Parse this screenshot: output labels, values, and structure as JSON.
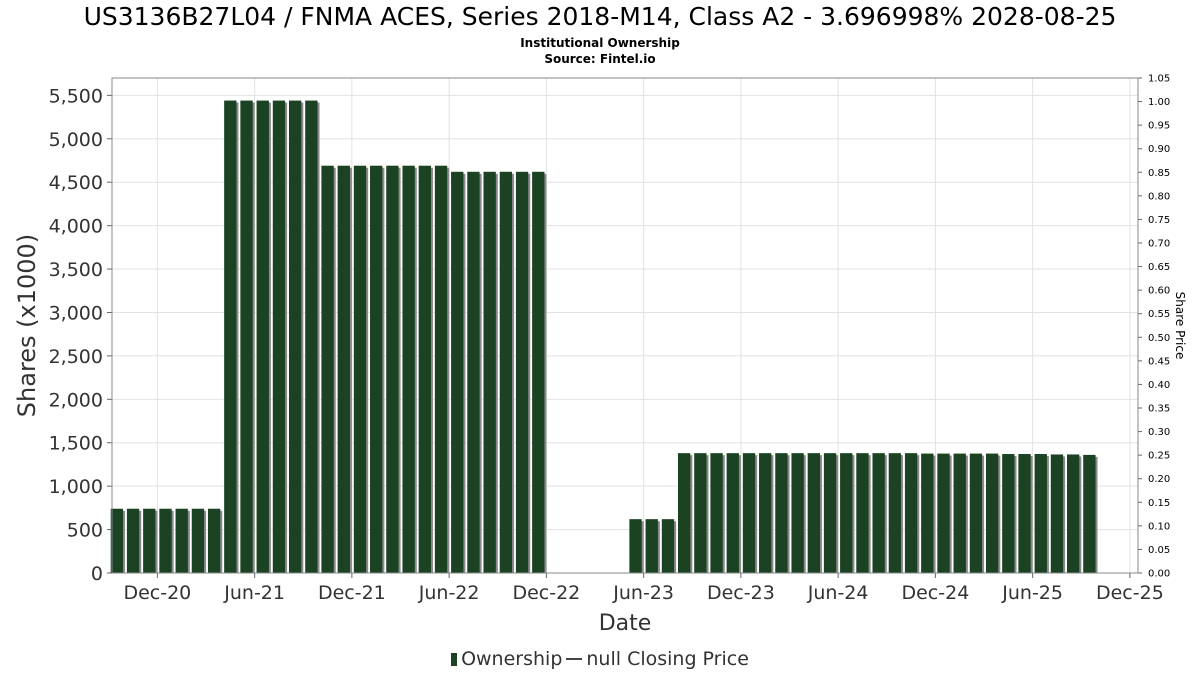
{
  "title": "US3136B27L04 / FNMA ACES, Series 2018-M14, Class A2 - 3.696998% 2028-08-25",
  "subtitle": "Institutional Ownership",
  "source": "Source: Fintel.io",
  "legend": {
    "ownership": "Ownership",
    "closing_price": "null Closing Price"
  },
  "colors": {
    "bar": "#1a4223",
    "bar_shadow": "#8a8a8a",
    "grid": "#e2e2e2"
  },
  "chart_data": {
    "type": "bar",
    "xlabel": "Date",
    "ylabel": "Shares (x1000)",
    "y2label": "Share Price",
    "ylim": [
      0,
      5700
    ],
    "y2lim": [
      0,
      1.05
    ],
    "grid": true,
    "legend_position": "bottom",
    "y_ticks": [
      "0",
      "500",
      "1,000",
      "1,500",
      "2,000",
      "2,500",
      "3,000",
      "3,500",
      "4,000",
      "4,500",
      "5,000",
      "5,500"
    ],
    "y_tick_values": [
      0,
      500,
      1000,
      1500,
      2000,
      2500,
      3000,
      3500,
      4000,
      4500,
      5000,
      5500
    ],
    "y2_ticks": [
      "0.00",
      "0.05",
      "0.10",
      "0.15",
      "0.20",
      "0.25",
      "0.30",
      "0.35",
      "0.40",
      "0.45",
      "0.50",
      "0.55",
      "0.60",
      "0.65",
      "0.70",
      "0.75",
      "0.80",
      "0.85",
      "0.90",
      "0.95",
      "1.00",
      "1.05"
    ],
    "x_ticks": [
      "Dec-20",
      "Jun-21",
      "Dec-21",
      "Jun-22",
      "Dec-22",
      "Jun-23",
      "Dec-23",
      "Jun-24",
      "Dec-24",
      "Jun-25",
      "Dec-25"
    ],
    "x_tick_months": [
      0,
      6,
      12,
      18,
      24,
      30,
      36,
      42,
      48,
      54,
      60
    ],
    "x_start_month": -2.8,
    "x_end_month": 60.5,
    "series": [
      {
        "name": "Ownership",
        "x_months": [
          -2.5,
          -1.5,
          -0.5,
          0.5,
          1.5,
          2.5,
          3.5,
          4.5,
          5.5,
          6.5,
          7.5,
          8.5,
          9.5,
          10.5,
          11.5,
          12.5,
          13.5,
          14.5,
          15.5,
          16.5,
          17.5,
          18.5,
          19.5,
          20.5,
          21.5,
          22.5,
          23.5,
          29.5,
          30.5,
          31.5,
          32.5,
          33.5,
          34.5,
          35.5,
          36.5,
          37.5,
          38.5,
          39.5,
          40.5,
          41.5,
          42.5,
          43.5,
          44.5,
          45.5,
          46.5,
          47.5,
          48.5,
          49.5,
          50.5,
          51.5,
          52.5,
          53.5,
          54.5,
          55.5,
          56.5,
          57.5
        ],
        "values": [
          740,
          740,
          740,
          740,
          740,
          740,
          740,
          5440,
          5440,
          5440,
          5440,
          5440,
          5440,
          4690,
          4690,
          4690,
          4690,
          4690,
          4690,
          4690,
          4690,
          4620,
          4620,
          4620,
          4620,
          4620,
          4620,
          620,
          620,
          620,
          1380,
          1380,
          1380,
          1380,
          1380,
          1380,
          1380,
          1380,
          1380,
          1380,
          1380,
          1380,
          1380,
          1380,
          1380,
          1375,
          1375,
          1375,
          1375,
          1375,
          1370,
          1370,
          1370,
          1365,
          1365,
          1360
        ]
      }
    ]
  }
}
